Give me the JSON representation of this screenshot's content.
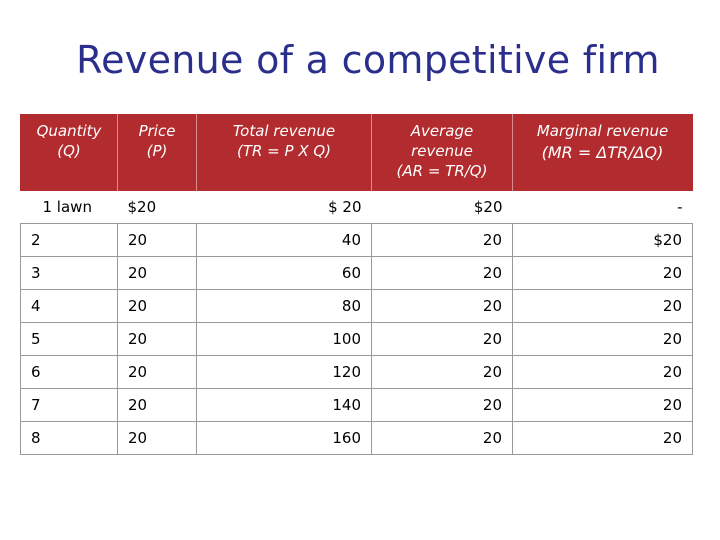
{
  "title": "Revenue of a competitive firm",
  "table": {
    "headers": [
      [
        "Quantity",
        "(Q)"
      ],
      [
        "Price",
        "(P)"
      ],
      [
        "Total revenue",
        "(TR = P X Q)"
      ],
      [
        "Average",
        "revenue",
        "(AR = TR/Q)"
      ],
      [
        "Marginal revenue",
        "(MR = ΔTR/ΔQ)"
      ]
    ],
    "rows": [
      [
        "1 lawn",
        "$20",
        "$ 20",
        "$20",
        "-"
      ],
      [
        "2",
        "20",
        "40",
        "20",
        "$20"
      ],
      [
        "3",
        "20",
        "60",
        "20",
        "20"
      ],
      [
        "4",
        "20",
        "80",
        "20",
        "20"
      ],
      [
        "5",
        "20",
        "100",
        "20",
        "20"
      ],
      [
        "6",
        "20",
        "120",
        "20",
        "20"
      ],
      [
        "7",
        "20",
        "140",
        "20",
        "20"
      ],
      [
        "8",
        "20",
        "160",
        "20",
        "20"
      ]
    ]
  },
  "colors": {
    "title": "#2b2f8c",
    "header_bg": "#b22b2e",
    "header_text": "#ffffff",
    "grid": "#999999"
  }
}
